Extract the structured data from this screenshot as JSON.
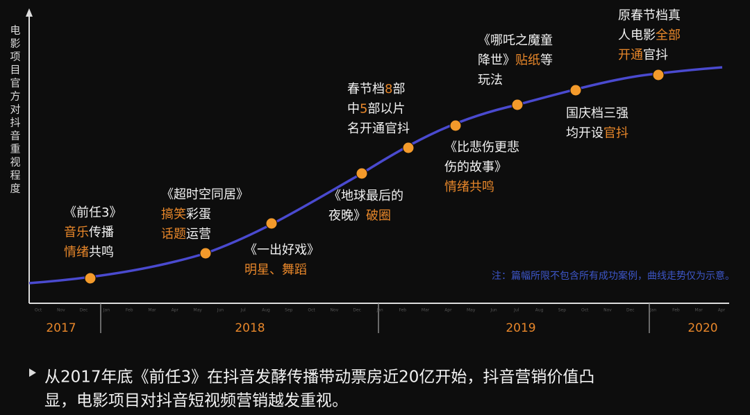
{
  "y_axis_label": "电影项目官方对抖音重视程度",
  "months": [
    "Oct",
    "Nov",
    "Dec",
    "Jan",
    "Feb",
    "Mar",
    "Apr",
    "May",
    "Jun",
    "Jul",
    "Aug",
    "Sep",
    "Oct",
    "Nov",
    "Dec",
    "Jan",
    "Feb",
    "Mar",
    "Apr",
    "May",
    "Jun",
    "Jul",
    "Aug",
    "Sep",
    "Oct",
    "Nov",
    "Dec",
    "Jan",
    "Feb",
    "Mar",
    "Apr"
  ],
  "years": [
    "2017",
    "2018",
    "2019",
    "2020"
  ],
  "annotations": [
    {
      "lines": [
        [
          {
            "text": "《前任3》"
          }
        ],
        [
          {
            "text": "音乐",
            "color": "#e8872a"
          },
          {
            "text": "传播"
          }
        ],
        [
          {
            "text": "情绪",
            "color": "#e8872a"
          },
          {
            "text": "共鸣"
          }
        ]
      ]
    },
    {
      "lines": [
        [
          {
            "text": "《超时空同居》"
          }
        ],
        [
          {
            "text": "搞笑",
            "color": "#e8872a"
          },
          {
            "text": "彩蛋"
          }
        ],
        [
          {
            "text": "话题",
            "color": "#e8872a"
          },
          {
            "text": "运营"
          }
        ]
      ]
    },
    {
      "lines": [
        [
          {
            "text": "《一出好戏》"
          }
        ],
        [
          {
            "text": "明星、舞蹈",
            "color": "#e8872a"
          }
        ]
      ]
    },
    {
      "lines": [
        [
          {
            "text": "《地球最后的"
          }
        ],
        [
          {
            "text": "夜晚》"
          },
          {
            "text": "破圈",
            "color": "#e8872a"
          }
        ]
      ]
    },
    {
      "lines": [
        [
          {
            "text": "春节档"
          },
          {
            "text": "8",
            "color": "#e8872a"
          },
          {
            "text": "部"
          }
        ],
        [
          {
            "text": "中"
          },
          {
            "text": "5",
            "color": "#e8872a"
          },
          {
            "text": "部以片"
          }
        ],
        [
          {
            "text": "名开通官抖"
          }
        ]
      ]
    },
    {
      "lines": [
        [
          {
            "text": "《比悲伤更悲"
          }
        ],
        [
          {
            "text": "伤的故事》"
          }
        ],
        [
          {
            "text": "情绪共鸣",
            "color": "#e8872a"
          }
        ]
      ]
    },
    {
      "lines": [
        [
          {
            "text": "《哪吒之魔童"
          }
        ],
        [
          {
            "text": "降世》"
          },
          {
            "text": "贴纸",
            "color": "#e8872a"
          },
          {
            "text": "等"
          }
        ],
        [
          {
            "text": "玩法"
          }
        ]
      ]
    },
    {
      "lines": [
        [
          {
            "text": "国庆档三强"
          }
        ],
        [
          {
            "text": "均开设"
          },
          {
            "text": "官抖",
            "color": "#e8872a"
          }
        ]
      ]
    },
    {
      "lines": [
        [
          {
            "text": "原春节档真"
          }
        ],
        [
          {
            "text": "人电影"
          },
          {
            "text": "全部",
            "color": "#e8872a"
          }
        ],
        [
          {
            "text": "开通",
            "color": "#e8872a"
          },
          {
            "text": "官抖"
          }
        ]
      ]
    }
  ],
  "note": "注：篇幅所限不包含所有成功案例，曲线走势仅为示意。",
  "summary": [
    "从2017年底《前任3》在抖音发酵传播带动票房近20亿开始，抖音营销价值凸",
    "显，电影项目对抖音短视频营销越发重视。"
  ]
}
